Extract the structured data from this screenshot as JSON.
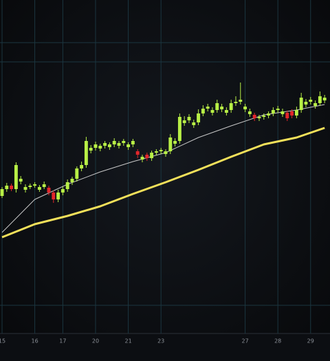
{
  "chart_data": {
    "type": "candlestick",
    "up_color": "#b8f046",
    "down_color": "#e3262b",
    "xlim": [
      -0.44,
      70.15
    ],
    "ylim": [
      0,
      485
    ],
    "xticks": [
      {
        "value": 0,
        "label": "15"
      },
      {
        "value": 7,
        "label": "16"
      },
      {
        "value": 13,
        "label": "17"
      },
      {
        "value": 20,
        "label": "20"
      },
      {
        "value": 27,
        "label": "21"
      },
      {
        "value": 34,
        "label": "23"
      },
      {
        "value": 52,
        "label": "27"
      },
      {
        "value": 59,
        "label": "28"
      },
      {
        "value": 66,
        "label": "29"
      }
    ],
    "y_gridlines": [
      41,
      395,
      423
    ],
    "open": [
      200,
      210,
      215,
      210,
      221,
      209,
      213,
      215,
      209,
      213,
      212,
      205,
      195,
      205,
      210,
      220,
      225,
      240,
      245,
      266,
      270,
      269,
      273,
      271,
      275,
      273,
      277,
      271,
      275,
      265,
      253,
      260,
      255,
      263,
      265,
      261,
      265,
      276,
      280,
      306,
      310,
      303,
      307,
      320,
      327,
      321,
      325,
      326,
      321,
      325,
      335,
      337,
      326,
      319,
      318,
      313,
      315,
      317,
      320,
      325,
      319,
      321,
      323,
      317,
      325,
      333,
      337,
      331,
      335,
      339
    ],
    "high": [
      213,
      219,
      218,
      249,
      229,
      217,
      218,
      220,
      216,
      221,
      215,
      208,
      209,
      214,
      224,
      228,
      243,
      250,
      286,
      274,
      279,
      276,
      280,
      278,
      284,
      280,
      283,
      278,
      283,
      268,
      260,
      263,
      266,
      268,
      270,
      268,
      290,
      284,
      320,
      316,
      319,
      311,
      326,
      332,
      334,
      329,
      340,
      334,
      329,
      340,
      345,
      365,
      334,
      327,
      321,
      318,
      320,
      323,
      329,
      331,
      327,
      324,
      326,
      330,
      350,
      341,
      344,
      339,
      352,
      347
    ],
    "low": [
      197,
      206,
      207,
      205,
      217,
      205,
      210,
      212,
      206,
      210,
      201,
      190,
      191,
      201,
      206,
      216,
      221,
      236,
      241,
      262,
      266,
      265,
      269,
      267,
      271,
      269,
      273,
      267,
      271,
      255,
      249,
      251,
      251,
      259,
      261,
      257,
      261,
      272,
      276,
      302,
      306,
      299,
      303,
      316,
      323,
      317,
      321,
      322,
      317,
      321,
      331,
      333,
      322,
      315,
      309,
      309,
      311,
      313,
      316,
      321,
      315,
      309,
      313,
      313,
      321,
      329,
      333,
      327,
      331,
      335
    ],
    "close": [
      210,
      215,
      210,
      245,
      225,
      213,
      215,
      217,
      213,
      217,
      205,
      195,
      205,
      210,
      220,
      225,
      240,
      245,
      280,
      270,
      275,
      273,
      277,
      275,
      280,
      277,
      280,
      275,
      280,
      260,
      257,
      255,
      263,
      265,
      267,
      265,
      285,
      280,
      315,
      310,
      315,
      307,
      320,
      327,
      330,
      325,
      335,
      330,
      325,
      335,
      337,
      340,
      330,
      323,
      313,
      315,
      317,
      320,
      325,
      327,
      323,
      313,
      317,
      325,
      343,
      337,
      340,
      335,
      345,
      343
    ],
    "moving_averages": [
      {
        "color": "#c9c9c9",
        "width": 1,
        "x": [
          0,
          7,
          14,
          21,
          28,
          35,
          42,
          49,
          56,
          63,
          69
        ],
        "values": [
          147,
          195,
          217,
          235,
          250,
          263,
          285,
          302,
          318,
          325,
          333
        ]
      },
      {
        "color": "#f2e05a",
        "width": 3,
        "x": [
          0,
          7,
          14,
          21,
          28,
          35,
          42,
          49,
          56,
          63,
          69
        ],
        "values": [
          140,
          159,
          171,
          185,
          203,
          220,
          238,
          257,
          275,
          285,
          299
        ]
      }
    ]
  }
}
